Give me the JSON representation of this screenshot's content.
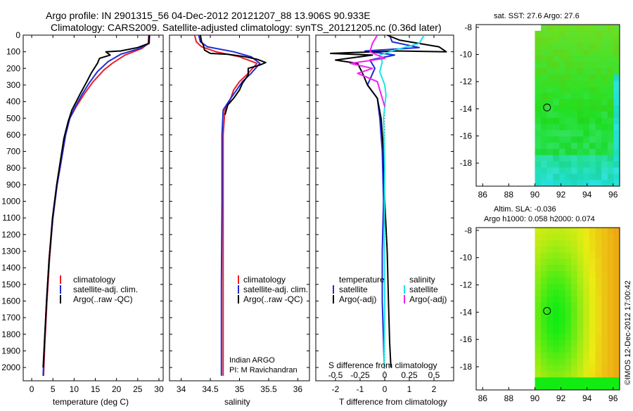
{
  "header": {
    "line1": "Argo profile: IN 2901315_56 04-Dec-2012 20121207_88 13.906S 90.933E",
    "line2": "Climatology: CARS2009. Satellite-adjusted climatology: synTS_20121205.nc (0.36d later)"
  },
  "colors": {
    "climatology": "#e8202a",
    "satellite": "#1f2bd6",
    "argo": "#000000",
    "sal_satellite": "#19e6e6",
    "sal_argo": "#ee22ee"
  },
  "chart_data": [
    {
      "id": "temperature",
      "type": "line",
      "xlabel": "temperature (deg C)",
      "ylabel": "",
      "xlim": [
        -2,
        31
      ],
      "ylim": [
        2080,
        0
      ],
      "xticks": [
        0,
        5,
        10,
        15,
        20,
        25,
        30
      ],
      "yticks": [
        0,
        100,
        200,
        300,
        400,
        500,
        600,
        700,
        800,
        900,
        1000,
        1100,
        1200,
        1300,
        1400,
        1500,
        1600,
        1700,
        1800,
        1900,
        2000
      ],
      "legend": [
        "climatology",
        "satellite-adj. clim.",
        "Argo(..raw -QC)"
      ],
      "series": [
        {
          "name": "climatology",
          "color": "#e8202a",
          "points": [
            [
              27.6,
              0
            ],
            [
              27.5,
              50
            ],
            [
              26,
              80
            ],
            [
              22,
              120
            ],
            [
              19,
              170
            ],
            [
              17,
              210
            ],
            [
              14.5,
              280
            ],
            [
              12.5,
              350
            ],
            [
              10.5,
              430
            ],
            [
              9,
              500
            ],
            [
              8,
              600
            ],
            [
              7,
              750
            ],
            [
              6,
              900
            ],
            [
              5,
              1100
            ],
            [
              4.2,
              1350
            ],
            [
              3.6,
              1600
            ],
            [
              3.1,
              1850
            ],
            [
              2.8,
              2050
            ]
          ]
        },
        {
          "name": "satellite-adj. clim.",
          "color": "#1f2bd6",
          "points": [
            [
              27.8,
              0
            ],
            [
              27.7,
              50
            ],
            [
              25.5,
              80
            ],
            [
              21,
              115
            ],
            [
              18,
              160
            ],
            [
              15.5,
              220
            ],
            [
              13.5,
              290
            ],
            [
              11.8,
              360
            ],
            [
              10.3,
              430
            ],
            [
              9,
              500
            ],
            [
              8,
              600
            ],
            [
              7,
              750
            ],
            [
              6,
              900
            ],
            [
              5,
              1100
            ],
            [
              4.1,
              1350
            ],
            [
              3.5,
              1600
            ],
            [
              3,
              1850
            ],
            [
              2.7,
              2050
            ]
          ]
        },
        {
          "name": "Argo(..raw -QC)",
          "color": "#000000",
          "points": [
            [
              27.7,
              0
            ],
            [
              27.6,
              50
            ],
            [
              25,
              75
            ],
            [
              21,
              95
            ],
            [
              17.5,
              100
            ],
            [
              18.5,
              120
            ],
            [
              16,
              140
            ],
            [
              15.5,
              170
            ],
            [
              14,
              230
            ],
            [
              13,
              280
            ],
            [
              11.5,
              350
            ],
            [
              10.5,
              400
            ],
            [
              9.5,
              450
            ],
            [
              8.6,
              520
            ],
            [
              7.6,
              620
            ],
            [
              6.8,
              750
            ],
            [
              5.9,
              900
            ],
            [
              4.9,
              1100
            ],
            [
              4.1,
              1350
            ],
            [
              3.5,
              1600
            ],
            [
              3,
              1850
            ],
            [
              2.7,
              2000
            ]
          ]
        }
      ]
    },
    {
      "id": "salinity",
      "type": "line",
      "xlabel": "salinity",
      "xlim": [
        33.8,
        36.2
      ],
      "ylim": [
        2080,
        0
      ],
      "xticks": [
        34,
        34.5,
        35,
        35.5,
        36
      ],
      "legend": [
        "climatology",
        "satellite-adj. clim.",
        "Argo(..raw -QC)"
      ],
      "annotation": [
        "Indian ARGO",
        "PI: M Ravichandran"
      ],
      "series": [
        {
          "name": "climatology",
          "color": "#e8202a",
          "points": [
            [
              34.23,
              0
            ],
            [
              34.26,
              40
            ],
            [
              34.35,
              70
            ],
            [
              34.6,
              100
            ],
            [
              35.0,
              130
            ],
            [
              35.3,
              170
            ],
            [
              35.15,
              230
            ],
            [
              35.0,
              280
            ],
            [
              34.9,
              330
            ],
            [
              34.85,
              380
            ],
            [
              34.75,
              450
            ],
            [
              34.72,
              600
            ],
            [
              34.72,
              1000
            ],
            [
              34.72,
              1500
            ],
            [
              34.72,
              2050
            ]
          ]
        },
        {
          "name": "satellite-adj. clim.",
          "color": "#1f2bd6",
          "points": [
            [
              34.3,
              0
            ],
            [
              34.33,
              40
            ],
            [
              34.45,
              70
            ],
            [
              34.9,
              100
            ],
            [
              35.2,
              130
            ],
            [
              35.35,
              170
            ],
            [
              35.2,
              230
            ],
            [
              35.05,
              280
            ],
            [
              34.95,
              330
            ],
            [
              34.85,
              380
            ],
            [
              34.72,
              450
            ],
            [
              34.7,
              600
            ],
            [
              34.7,
              1000
            ],
            [
              34.69,
              1500
            ],
            [
              34.69,
              2050
            ]
          ]
        },
        {
          "name": "Argo(..raw -QC)",
          "color": "#000000",
          "points": [
            [
              34.33,
              0
            ],
            [
              34.35,
              40
            ],
            [
              34.38,
              60
            ],
            [
              34.4,
              90
            ],
            [
              34.5,
              110
            ],
            [
              34.8,
              115
            ],
            [
              35.1,
              130
            ],
            [
              35.3,
              145
            ],
            [
              35.45,
              165
            ],
            [
              35.35,
              180
            ],
            [
              35.15,
              200
            ],
            [
              35.15,
              240
            ],
            [
              35.05,
              290
            ],
            [
              35.0,
              330
            ],
            [
              34.9,
              380
            ],
            [
              34.8,
              420
            ],
            [
              34.75,
              480
            ]
          ]
        }
      ]
    },
    {
      "id": "difference",
      "type": "line",
      "xlabel": "T difference from climatology",
      "xlabel_top": "S difference from climatology",
      "xlim": [
        -2.8,
        2.8
      ],
      "ylim": [
        2080,
        0
      ],
      "xticks": [
        -2,
        -1,
        0,
        1,
        2
      ],
      "xticks_s": [
        -0.5,
        -0.25,
        0,
        0.25,
        0.5
      ],
      "legend_temperature": {
        "heading": "temperature",
        "items": [
          "satellite",
          "Argo(-adj)"
        ]
      },
      "legend_salinity": {
        "heading": "salinity",
        "items": [
          "satellite",
          "Argo(-adj)"
        ]
      },
      "series": [
        {
          "name": "temperature satellite",
          "color": "#1f2bd6",
          "points": [
            [
              0.2,
              0
            ],
            [
              0.3,
              40
            ],
            [
              1.4,
              75
            ],
            [
              -0.8,
              95
            ],
            [
              0.4,
              120
            ],
            [
              -0.6,
              150
            ],
            [
              -0.4,
              200
            ],
            [
              -0.7,
              300
            ],
            [
              -0.3,
              380
            ],
            [
              -0.2,
              500
            ],
            [
              -0.1,
              700
            ],
            [
              -0.05,
              1000
            ],
            [
              -0.1,
              1300
            ],
            [
              -0.1,
              1600
            ],
            [
              -0.05,
              1850
            ],
            [
              -0.02,
              2000
            ]
          ]
        },
        {
          "name": "temperature Argo(-adj)",
          "color": "#000000",
          "points": [
            [
              0.1,
              0
            ],
            [
              0.6,
              30
            ],
            [
              2.2,
              70
            ],
            [
              2.5,
              100
            ],
            [
              0.5,
              95
            ],
            [
              -2.2,
              110
            ],
            [
              -0.5,
              120
            ],
            [
              -2.0,
              150
            ],
            [
              -1.1,
              170
            ],
            [
              -0.9,
              230
            ],
            [
              -0.7,
              300
            ],
            [
              -0.3,
              380
            ],
            [
              -0.15,
              500
            ],
            [
              -0.05,
              700
            ],
            [
              0.0,
              1000
            ],
            [
              0.1,
              1300
            ],
            [
              0.15,
              1600
            ],
            [
              0.2,
              1850
            ],
            [
              0.25,
              2000
            ]
          ]
        },
        {
          "name": "salinity satellite",
          "color": "#19e6e6",
          "points": [
            [
              1.6,
              0
            ],
            [
              1.4,
              50
            ],
            [
              0.4,
              90
            ],
            [
              -0.2,
              120
            ],
            [
              -0.1,
              160
            ],
            [
              -0.2,
              220
            ],
            [
              0.0,
              300
            ],
            [
              0.05,
              360
            ],
            [
              -0.05,
              500
            ],
            [
              0.0,
              800
            ],
            [
              -0.02,
              1200
            ],
            [
              0.0,
              1600
            ],
            [
              -0.03,
              2000
            ]
          ]
        },
        {
          "name": "salinity Argo(-adj)",
          "color": "#ee22ee",
          "points": [
            [
              -0.3,
              0
            ],
            [
              -0.5,
              50
            ],
            [
              -0.6,
              100
            ],
            [
              0.0,
              140
            ],
            [
              -1.4,
              170
            ],
            [
              -0.5,
              200
            ],
            [
              -1.1,
              230
            ],
            [
              -0.3,
              280
            ],
            [
              -0.1,
              380
            ],
            [
              0.0,
              430
            ]
          ]
        }
      ]
    },
    {
      "id": "sst_map",
      "type": "heatmap",
      "title": "sat. SST: 27.6 Argo: 27.6",
      "xlim": [
        85.5,
        96.5
      ],
      "ylim": [
        -19.7,
        -7.8
      ],
      "xticks": [
        86,
        88,
        90,
        92,
        94,
        96
      ],
      "yticks": [
        -8,
        -10,
        -12,
        -14,
        -16,
        -18
      ],
      "argo_position": [
        90.933,
        -13.906
      ],
      "data_lon_range": [
        90,
        96.5
      ]
    },
    {
      "id": "sla_map",
      "type": "heatmap",
      "title_line1": "Altim. SLA: -0.036",
      "title_line2": "Argo h1000: 0.058 h2000: 0.074",
      "xlim": [
        85.5,
        96.5
      ],
      "ylim": [
        -19.7,
        -7.8
      ],
      "xticks": [
        86,
        88,
        90,
        92,
        94,
        96
      ],
      "yticks": [
        -8,
        -10,
        -12,
        -14,
        -16,
        -18
      ],
      "argo_position": [
        90.933,
        -13.906
      ],
      "data_lon_range": [
        90,
        96.5
      ]
    }
  ],
  "footer": {
    "stamp": "©IMOS 12-Dec-2012 17:00:42"
  }
}
